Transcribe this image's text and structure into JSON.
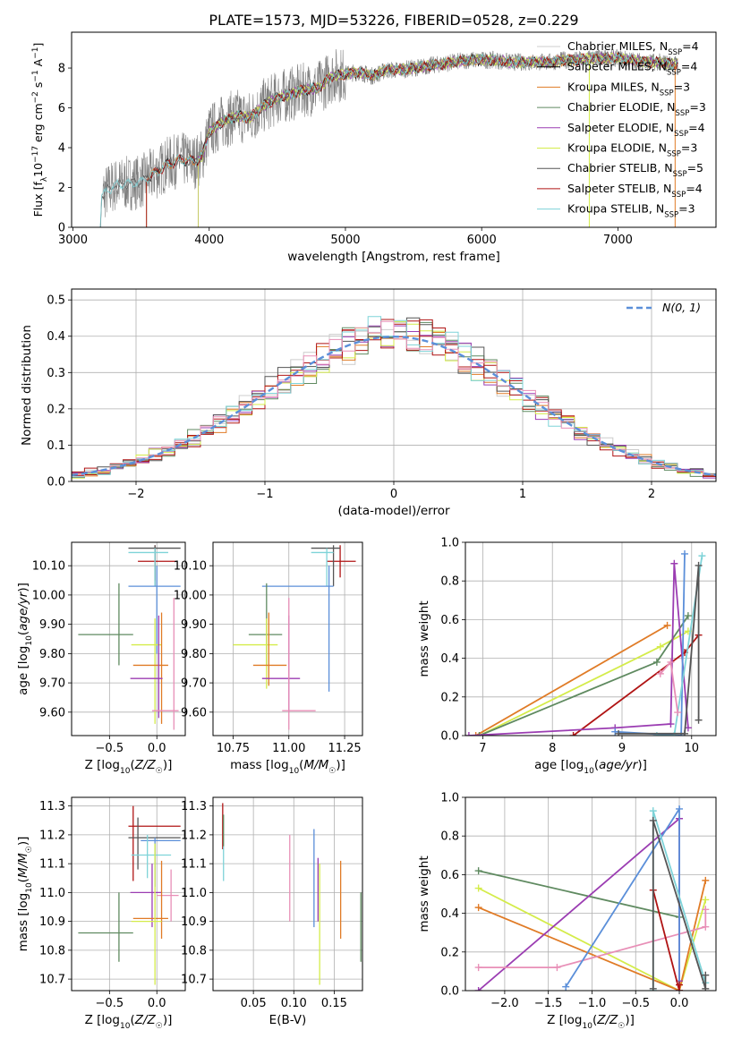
{
  "figure_title": "PLATE=1573, MJD=53226, FIBERID=0528, z=0.229",
  "models": [
    {
      "key": "cm",
      "name": "Chabrier MILES, N",
      "nssp": "4",
      "color": "#cccccc"
    },
    {
      "key": "sm",
      "name": "Salpeter MILES, N",
      "nssp": "4",
      "color": "#000000"
    },
    {
      "key": "km",
      "name": "Kroupa MILES, N",
      "nssp": "3",
      "color": "#e07b26"
    },
    {
      "key": "ce",
      "name": "Chabrier ELODIE, N",
      "nssp": "3",
      "color": "#5f8a60"
    },
    {
      "key": "se",
      "name": "Salpeter ELODIE, N",
      "nssp": "4",
      "color": "#9b3db2"
    },
    {
      "key": "ke",
      "name": "Kroupa ELODIE, N",
      "nssp": "3",
      "color": "#d4ec4a"
    },
    {
      "key": "cs",
      "name": "Chabrier STELIB, N",
      "nssp": "5",
      "color": "#555555"
    },
    {
      "key": "ss",
      "name": "Salpeter STELIB, N",
      "nssp": "4",
      "color": "#b01414"
    },
    {
      "key": "ks",
      "name": "Kroupa STELIB, N",
      "nssp": "3",
      "color": "#7ed3d8"
    }
  ],
  "colors": {
    "data_gray": "#808080",
    "normal_curve": "#5b8fd9",
    "grid": "#b0b0b0",
    "pink": "#e88fb7",
    "blue": "#5b8fd9"
  },
  "chart_data": [
    {
      "id": "spectrum",
      "type": "line",
      "xlabel": "wavelength [Angstrom, rest frame]",
      "ylabel": "Flux [f_λ 10^-17 erg cm^-2 s^-1 A^-1]",
      "xlim": [
        2990,
        7720
      ],
      "ylim": [
        0,
        9.8
      ],
      "xticks": [
        3000,
        4000,
        5000,
        6000,
        7000
      ],
      "yticks": [
        0,
        2,
        4,
        6,
        8
      ],
      "continuum": [
        [
          3200,
          0.0
        ],
        [
          3210,
          1.6
        ],
        [
          3300,
          2.1
        ],
        [
          3400,
          2.2
        ],
        [
          3500,
          2.3
        ],
        [
          3600,
          2.7
        ],
        [
          3700,
          3.2
        ],
        [
          3800,
          3.4
        ],
        [
          3900,
          3.3
        ],
        [
          3950,
          3.6
        ],
        [
          4000,
          4.8
        ],
        [
          4100,
          5.3
        ],
        [
          4200,
          5.6
        ],
        [
          4300,
          5.5
        ],
        [
          4400,
          6.1
        ],
        [
          4500,
          6.5
        ],
        [
          4600,
          6.7
        ],
        [
          4700,
          6.9
        ],
        [
          4800,
          7.0
        ],
        [
          4900,
          7.6
        ],
        [
          5000,
          7.7
        ],
        [
          5100,
          7.8
        ],
        [
          5200,
          7.6
        ],
        [
          5300,
          7.9
        ],
        [
          5400,
          7.9
        ],
        [
          5500,
          8.0
        ],
        [
          5600,
          8.1
        ],
        [
          5700,
          8.2
        ],
        [
          5800,
          8.3
        ],
        [
          5900,
          8.4
        ],
        [
          6000,
          8.4
        ],
        [
          6100,
          8.4
        ],
        [
          6200,
          8.3
        ],
        [
          6300,
          8.3
        ],
        [
          6400,
          8.3
        ],
        [
          6500,
          8.3
        ],
        [
          6600,
          8.4
        ],
        [
          6700,
          8.4
        ],
        [
          6800,
          8.5
        ],
        [
          6900,
          8.5
        ],
        [
          7000,
          8.5
        ],
        [
          7100,
          8.4
        ],
        [
          7200,
          8.3
        ],
        [
          7300,
          8.3
        ],
        [
          7400,
          8.2
        ],
        [
          7440,
          8.2
        ]
      ],
      "model_starts": {
        "cm": 3200,
        "sm": 3540,
        "km": 3540,
        "ce": 3920,
        "se": 3920,
        "ke": 3920,
        "cs": 3200,
        "ss": 3540,
        "ks": 3200
      },
      "legend": "upper-right"
    },
    {
      "id": "residuals",
      "type": "histogram",
      "xlabel": "(data-model)/error",
      "ylabel": "Normed distribution",
      "xlim": [
        -2.5,
        2.5
      ],
      "ylim": [
        0,
        0.53
      ],
      "xticks": [
        -2,
        -1,
        0,
        1,
        2
      ],
      "yticks": [
        0.0,
        0.1,
        0.2,
        0.3,
        0.4,
        0.5
      ],
      "bin_width": 0.1,
      "normal_label": "N(0, 1)"
    },
    {
      "id": "age_vs_Z",
      "type": "scatter",
      "xlabel": "Z [log10(Z/Z☉)]",
      "ylabel": "age  [log10(age/yr)]",
      "xlim": [
        -0.9,
        0.3
      ],
      "ylim": [
        9.52,
        10.18
      ],
      "xticks": [
        -0.5,
        0.0
      ],
      "yticks": [
        9.6,
        9.7,
        9.8,
        9.9,
        10.0,
        10.1
      ],
      "points": [
        {
          "c": "ss",
          "x": -0.02,
          "y": 10.115,
          "xl": -0.2,
          "xh": 0.22,
          "yl": 10.05,
          "yh": 10.17
        },
        {
          "c": "cs",
          "x": -0.02,
          "y": 10.16,
          "xl": -0.3,
          "xh": 0.25,
          "yl": 10.03,
          "yh": 10.17
        },
        {
          "c": "ks",
          "x": -0.02,
          "y": 10.145,
          "xl": -0.3,
          "xh": 0.12,
          "yl": 10.03,
          "yh": 10.16
        },
        {
          "c": "blue",
          "x": 0.0,
          "y": 10.03,
          "xl": -0.3,
          "xh": 0.25,
          "yl": 9.8,
          "yh": 10.1
        },
        {
          "c": "ce",
          "x": -0.4,
          "y": 9.865,
          "xl": -0.83,
          "xh": -0.25,
          "yl": 9.76,
          "yh": 10.04
        },
        {
          "c": "ke",
          "x": -0.02,
          "y": 9.83,
          "xl": -0.27,
          "xh": 0.05,
          "yl": 9.56,
          "yh": 9.92
        },
        {
          "c": "km",
          "x": 0.05,
          "y": 9.76,
          "xl": -0.25,
          "xh": 0.12,
          "yl": 9.56,
          "yh": 9.94
        },
        {
          "c": "se",
          "x": 0.02,
          "y": 9.715,
          "xl": -0.28,
          "xh": 0.06,
          "yl": 9.58,
          "yh": 9.93
        },
        {
          "c": "pink",
          "x": 0.18,
          "y": 9.605,
          "xl": -0.05,
          "xh": 0.23,
          "yl": 9.54,
          "yh": 9.99
        }
      ]
    },
    {
      "id": "age_vs_mass",
      "type": "scatter",
      "xlabel": "mass [log10(M/M☉)]",
      "ylabel": "",
      "xlim": [
        10.66,
        11.33
      ],
      "ylim": [
        9.52,
        10.18
      ],
      "xticks": [
        10.75,
        11.0,
        11.25
      ],
      "yticks": [
        9.6,
        9.7,
        9.8,
        9.9,
        10.0,
        10.1
      ],
      "points": [
        {
          "c": "ss",
          "x": 11.23,
          "y": 10.115,
          "xl": 11.17,
          "xh": 11.3,
          "yl": 10.06,
          "yh": 10.17
        },
        {
          "c": "cs",
          "x": 11.2,
          "y": 10.16,
          "xl": 11.1,
          "xh": 11.23,
          "yl": 10.03,
          "yh": 10.17
        },
        {
          "c": "ks",
          "x": 11.17,
          "y": 10.145,
          "xl": 11.1,
          "xh": 11.2,
          "yl": 10.03,
          "yh": 10.16
        },
        {
          "c": "blue",
          "x": 11.18,
          "y": 10.03,
          "xl": 10.88,
          "xh": 11.2,
          "yl": 9.67,
          "yh": 10.1
        },
        {
          "c": "ce",
          "x": 10.9,
          "y": 9.865,
          "xl": 10.82,
          "xh": 10.97,
          "yl": 9.76,
          "yh": 10.04
        },
        {
          "c": "ke",
          "x": 10.9,
          "y": 9.83,
          "xl": 10.75,
          "xh": 10.95,
          "yl": 9.68,
          "yh": 9.92
        },
        {
          "c": "km",
          "x": 10.91,
          "y": 9.76,
          "xl": 10.84,
          "xh": 10.99,
          "yl": 9.69,
          "yh": 9.94
        },
        {
          "c": "se",
          "x": 11.0,
          "y": 9.715,
          "xl": 10.88,
          "xh": 11.05,
          "yl": 9.6,
          "yh": 9.93
        },
        {
          "c": "pink",
          "x": 11.0,
          "y": 9.605,
          "xl": 10.97,
          "xh": 11.12,
          "yl": 9.54,
          "yh": 9.99
        }
      ]
    },
    {
      "id": "weight_vs_age",
      "type": "line",
      "xlabel": "age  [log10(age/yr)]",
      "ylabel": "mass weight",
      "xlim": [
        6.75,
        10.35
      ],
      "ylim": [
        0,
        1
      ],
      "xticks": [
        7,
        8,
        9,
        10
      ],
      "yticks": [
        0.0,
        0.2,
        0.4,
        0.6,
        0.8,
        1.0
      ],
      "series": [
        {
          "c": "km",
          "x": [
            6.9,
            9.65
          ],
          "y": [
            0.0,
            0.57
          ]
        },
        {
          "c": "ke",
          "x": [
            6.95,
            9.55,
            9.95
          ],
          "y": [
            0.0,
            0.46,
            0.54
          ]
        },
        {
          "c": "ce",
          "x": [
            6.95,
            9.5,
            9.95
          ],
          "y": [
            0.0,
            0.38,
            0.62
          ]
        },
        {
          "c": "ss",
          "x": [
            8.3,
            9.9,
            10.1
          ],
          "y": [
            0.0,
            0.43,
            0.52
          ]
        },
        {
          "c": "se",
          "x": [
            6.8,
            8.9,
            9.7,
            9.75,
            9.95
          ],
          "y": [
            0.0,
            0.04,
            0.06,
            0.89,
            0.04
          ]
        },
        {
          "c": "blue",
          "x": [
            8.9,
            9.85,
            9.9
          ],
          "y": [
            0.02,
            0.0,
            0.94
          ]
        },
        {
          "c": "ks",
          "x": [
            9.5,
            9.75,
            10.15
          ],
          "y": [
            0.0,
            0.0,
            0.93
          ]
        },
        {
          "c": "cs",
          "x": [
            8.95,
            9.9,
            10.1,
            10.1
          ],
          "y": [
            0.01,
            0.01,
            0.88,
            0.08
          ]
        },
        {
          "c": "pink",
          "x": [
            9.55,
            9.7,
            9.8
          ],
          "y": [
            0.32,
            0.38,
            0.12
          ]
        }
      ]
    },
    {
      "id": "mass_vs_Z",
      "type": "scatter",
      "xlabel": "Z [log10(Z/Z☉)]",
      "ylabel": "mass [log10(M/M☉)]",
      "xlim": [
        -0.9,
        0.3
      ],
      "ylim": [
        10.66,
        11.33
      ],
      "xticks": [
        -0.5,
        0.0
      ],
      "yticks": [
        10.7,
        10.8,
        10.9,
        11.0,
        11.1,
        11.2,
        11.3
      ],
      "points": [
        {
          "c": "ss",
          "x": -0.25,
          "y": 11.23,
          "xl": -0.3,
          "xh": 0.25,
          "yl": 11.04,
          "yh": 11.3
        },
        {
          "c": "cs",
          "x": -0.2,
          "y": 11.19,
          "xl": -0.3,
          "xh": 0.25,
          "yl": 11.08,
          "yh": 11.26
        },
        {
          "c": "blue",
          "x": -0.02,
          "y": 11.18,
          "xl": -0.17,
          "xh": 0.25,
          "yl": 11.02,
          "yh": 11.19
        },
        {
          "c": "ks",
          "x": -0.1,
          "y": 11.13,
          "xl": -0.27,
          "xh": 0.15,
          "yl": 11.05,
          "yh": 11.2
        },
        {
          "c": "ce",
          "x": -0.4,
          "y": 10.86,
          "xl": -0.83,
          "xh": -0.25,
          "yl": 10.76,
          "yh": 11.0
        },
        {
          "c": "se",
          "x": -0.05,
          "y": 11.0,
          "xl": -0.28,
          "xh": 0.05,
          "yl": 10.88,
          "yh": 11.1
        },
        {
          "c": "pink",
          "x": 0.15,
          "y": 10.99,
          "xl": 0.0,
          "xh": 0.23,
          "yl": 10.9,
          "yh": 11.08
        },
        {
          "c": "km",
          "x": 0.05,
          "y": 10.91,
          "xl": -0.25,
          "xh": 0.12,
          "yl": 10.84,
          "yh": 11.11
        },
        {
          "c": "ke",
          "x": -0.02,
          "y": 10.9,
          "xl": -0.27,
          "xh": 0.05,
          "yl": 10.68,
          "yh": 11.17
        }
      ]
    },
    {
      "id": "mass_vs_ebv",
      "type": "scatter",
      "xlabel": "E(B-V)",
      "ylabel": "",
      "xlim": [
        0.0,
        0.185
      ],
      "ylim": [
        10.66,
        11.33
      ],
      "xticks": [
        0.05,
        0.1,
        0.15
      ],
      "yticks": [
        10.7,
        10.8,
        10.9,
        11.0,
        11.1,
        11.2,
        11.3
      ],
      "points": [
        {
          "c": "ss",
          "x": 0.012,
          "y": 11.23,
          "yl": 11.15,
          "yh": 11.31
        },
        {
          "c": "ce",
          "x": 0.013,
          "y": 11.2,
          "yl": 11.16,
          "yh": 11.27
        },
        {
          "c": "ks",
          "x": 0.013,
          "y": 11.1,
          "yl": 11.04,
          "yh": 11.16
        },
        {
          "c": "blue",
          "x": 0.125,
          "y": 11.05,
          "yl": 10.88,
          "yh": 11.22
        },
        {
          "c": "se",
          "x": 0.13,
          "y": 11.0,
          "yl": 10.9,
          "yh": 11.12
        },
        {
          "c": "pink",
          "x": 0.095,
          "y": 11.0,
          "yl": 10.9,
          "yh": 11.2
        },
        {
          "c": "km",
          "x": 0.158,
          "y": 11.0,
          "yl": 10.84,
          "yh": 11.11
        },
        {
          "c": "ke",
          "x": 0.132,
          "y": 10.9,
          "yl": 10.68,
          "yh": 11.1
        },
        {
          "c": "ce",
          "x": 0.183,
          "y": 10.9,
          "yl": 10.76,
          "yh": 11.0
        }
      ]
    },
    {
      "id": "weight_vs_Z",
      "type": "line",
      "xlabel": "Z [log10(Z/Z☉)]",
      "ylabel": "mass weight",
      "xlim": [
        -2.45,
        0.42
      ],
      "ylim": [
        0,
        1
      ],
      "xticks": [
        -2.0,
        -1.5,
        -1.0,
        -0.5,
        0.0
      ],
      "yticks": [
        0.0,
        0.2,
        0.4,
        0.6,
        0.8,
        1.0
      ],
      "series": [
        {
          "c": "ce",
          "x": [
            -2.3,
            0.0
          ],
          "y": [
            0.62,
            0.38
          ]
        },
        {
          "c": "ke",
          "x": [
            -2.3,
            0.0,
            0.3
          ],
          "y": [
            0.53,
            0.0,
            0.47
          ]
        },
        {
          "c": "km",
          "x": [
            -2.3,
            0.0,
            0.3
          ],
          "y": [
            0.43,
            0.0,
            0.57
          ]
        },
        {
          "c": "se",
          "x": [
            -2.3,
            0.0,
            0.0
          ],
          "y": [
            0.0,
            0.89,
            0.05
          ]
        },
        {
          "c": "pink",
          "x": [
            -2.3,
            -1.4,
            0.3,
            0.3
          ],
          "y": [
            0.12,
            0.12,
            0.33,
            0.42
          ]
        },
        {
          "c": "blue",
          "x": [
            -1.3,
            0.0,
            0.0
          ],
          "y": [
            0.02,
            0.94,
            0.0
          ]
        },
        {
          "c": "ks",
          "x": [
            -0.3,
            -0.3,
            0.3
          ],
          "y": [
            0.0,
            0.93,
            0.04
          ]
        },
        {
          "c": "ss",
          "x": [
            -0.3,
            0.0,
            0.0
          ],
          "y": [
            0.52,
            0.0,
            0.03
          ]
        },
        {
          "c": "cs",
          "x": [
            -0.3,
            -0.3,
            0.3,
            0.3
          ],
          "y": [
            0.01,
            0.88,
            0.01,
            0.08
          ]
        }
      ]
    }
  ]
}
